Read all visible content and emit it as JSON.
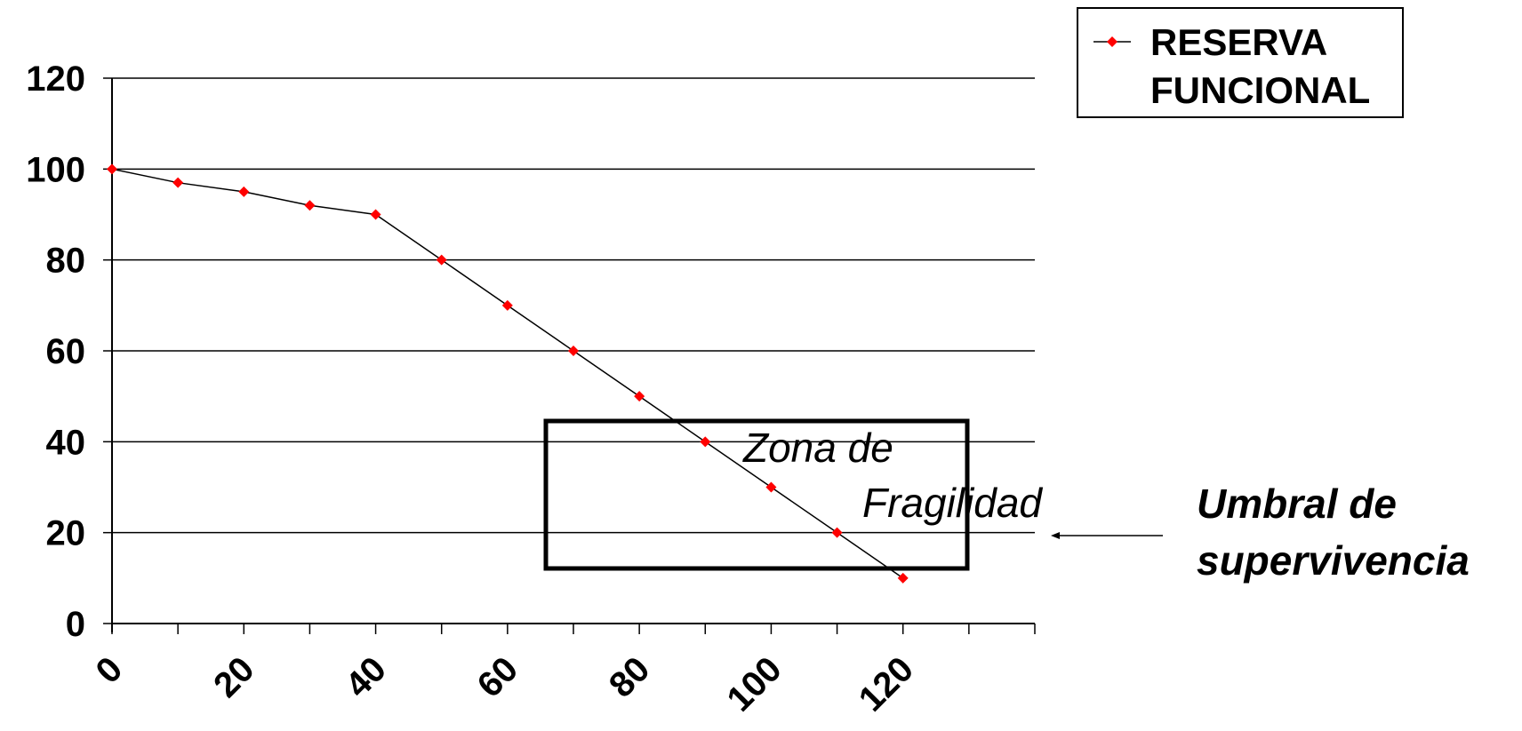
{
  "chart_data": {
    "type": "line",
    "title": "",
    "xlabel": "",
    "ylabel": "",
    "x_ticks": [
      "0",
      "20",
      "40",
      "60",
      "80",
      "100",
      "120"
    ],
    "y_ticks": [
      "0",
      "20",
      "40",
      "60",
      "80",
      "100",
      "120"
    ],
    "xlim": [
      0,
      140
    ],
    "ylim": [
      0,
      120
    ],
    "grid": "horizontal",
    "legend_position": "top-right",
    "series": [
      {
        "name": "RESERVA FUNCIONAL",
        "color": "#ff0000",
        "line_color": "#000000",
        "marker": "diamond",
        "x": [
          0,
          10,
          20,
          30,
          40,
          50,
          60,
          70,
          80,
          90,
          100,
          110,
          120
        ],
        "y": [
          100,
          97,
          95,
          92,
          90,
          80,
          70,
          60,
          50,
          40,
          30,
          20,
          10
        ]
      }
    ],
    "legend": {
      "line1": "RESERVA",
      "line2": "FUNCIONAL"
    },
    "annotations": {
      "zone_line1": "Zona de",
      "zone_line2": "Fragilidad",
      "umbral_line1": "Umbral de",
      "umbral_line2": "supervivencia"
    }
  }
}
